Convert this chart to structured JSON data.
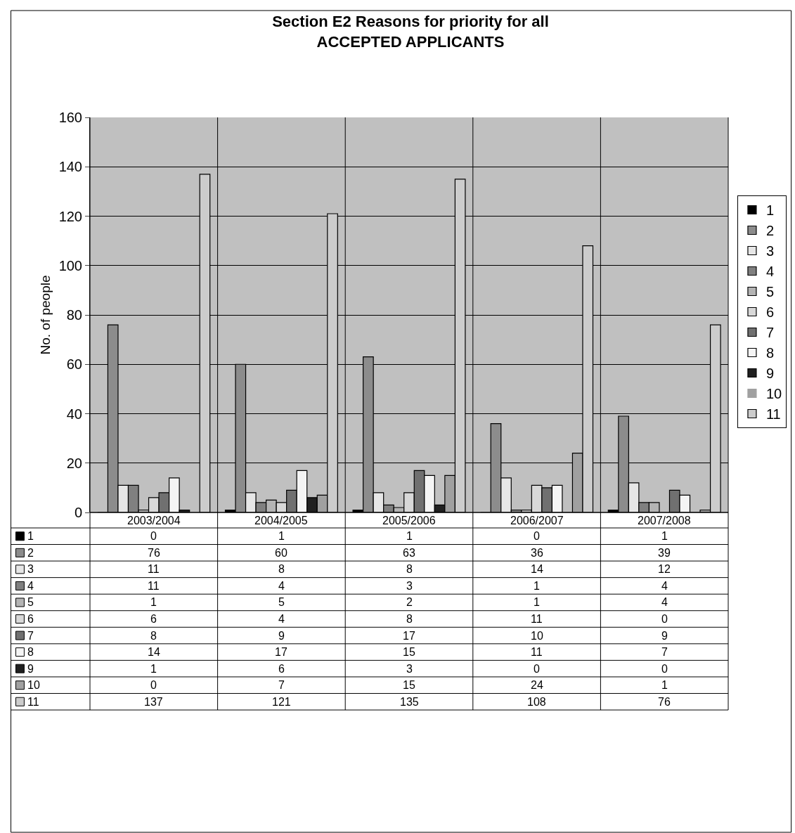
{
  "chart_data": {
    "type": "bar",
    "title": "Section E2 Reasons for priority for all\nACCEPTED APPLICANTS",
    "ylabel": "No. of people",
    "categories": [
      "2003/2004",
      "2004/2005",
      "2005/2006",
      "2006/2007",
      "2007/2008"
    ],
    "series": [
      {
        "name": "1",
        "color": "#000000",
        "values": [
          0,
          1,
          1,
          0,
          1
        ]
      },
      {
        "name": "2",
        "color": "#8c8c8c",
        "values": [
          76,
          60,
          63,
          36,
          39
        ]
      },
      {
        "name": "3",
        "color": "#e6e6e6",
        "values": [
          11,
          8,
          8,
          14,
          12
        ]
      },
      {
        "name": "4",
        "color": "#808080",
        "values": [
          11,
          4,
          3,
          1,
          4
        ]
      },
      {
        "name": "5",
        "color": "#b4b4b4",
        "values": [
          1,
          5,
          2,
          1,
          4
        ]
      },
      {
        "name": "6",
        "color": "#d8d8d8",
        "values": [
          6,
          4,
          8,
          11,
          0
        ]
      },
      {
        "name": "7",
        "color": "#707070",
        "values": [
          8,
          9,
          17,
          10,
          9
        ]
      },
      {
        "name": "8",
        "color": "#f4f4f4",
        "values": [
          14,
          17,
          15,
          11,
          7
        ]
      },
      {
        "name": "9",
        "color": "#202020",
        "values": [
          1,
          6,
          3,
          0,
          0
        ]
      },
      {
        "name": "10",
        "color": "#a0a0a0",
        "values": [
          0,
          7,
          15,
          24,
          1
        ]
      },
      {
        "name": "11",
        "color": "#cccccc",
        "values": [
          137,
          121,
          135,
          108,
          76
        ]
      }
    ],
    "ylim": [
      0,
      160
    ],
    "yticks": [
      0,
      20,
      40,
      60,
      80,
      100,
      120,
      140,
      160
    ],
    "grid": "y",
    "legend": "right",
    "data_labels": true
  }
}
